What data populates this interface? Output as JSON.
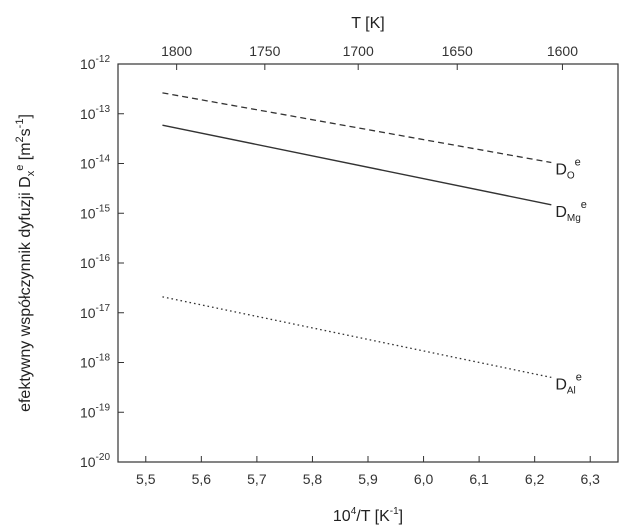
{
  "chart_data": {
    "type": "line",
    "x_axis_bottom": {
      "label_base": "10",
      "label_exp": "4",
      "label_rest": "/T [K",
      "label_unit_exp": "-1",
      "label_close": "]",
      "min": 5.45,
      "max": 6.35,
      "ticks": [
        5.5,
        5.6,
        5.7,
        5.8,
        5.9,
        6.0,
        6.1,
        6.2,
        6.3
      ],
      "tick_labels": [
        "5,5",
        "5,6",
        "5,7",
        "5,8",
        "5,9",
        "6,0",
        "6,1",
        "6,2",
        "6,3"
      ]
    },
    "x_axis_top": {
      "label": "T [K]",
      "ticks": [
        1800,
        1750,
        1700,
        1650,
        1600
      ],
      "tick_labels": [
        "1800",
        "1750",
        "1700",
        "1650",
        "1600"
      ]
    },
    "y_axis": {
      "label_main": "efektywny współczynnik dyfuzji  D",
      "label_sub": "x",
      "label_sup": "e",
      "label_unit_open": " [m",
      "label_unit_sup1": "2",
      "label_unit_mid": "s",
      "label_unit_sup2": "-1",
      "label_unit_close": "]",
      "scale": "log",
      "min_exp": -20,
      "max_exp": -12,
      "tick_exponents": [
        -12,
        -13,
        -14,
        -15,
        -16,
        -17,
        -18,
        -19,
        -20
      ],
      "tick_base": "10",
      "tick_exp_labels": [
        "-12",
        "-13",
        "-14",
        "-15",
        "-16",
        "-17",
        "-18",
        "-19",
        "-20"
      ]
    },
    "series": [
      {
        "name_main": "D",
        "name_sub": "O",
        "name_sup": "e",
        "style": "dashed",
        "x": [
          5.53,
          6.23
        ],
        "y_log10": [
          -12.58,
          -13.98
        ]
      },
      {
        "name_main": "D",
        "name_sub": "Mg",
        "name_sup": "e",
        "style": "solid",
        "x": [
          5.53,
          6.23
        ],
        "y_log10": [
          -13.23,
          -14.83
        ]
      },
      {
        "name_main": "D",
        "name_sub": "Al",
        "name_sup": "e",
        "style": "dotted",
        "x": [
          5.53,
          6.23
        ],
        "y_log10": [
          -16.68,
          -18.3
        ]
      }
    ],
    "grid": false,
    "colors": {
      "line": "#333333",
      "axis": "#333333"
    }
  }
}
